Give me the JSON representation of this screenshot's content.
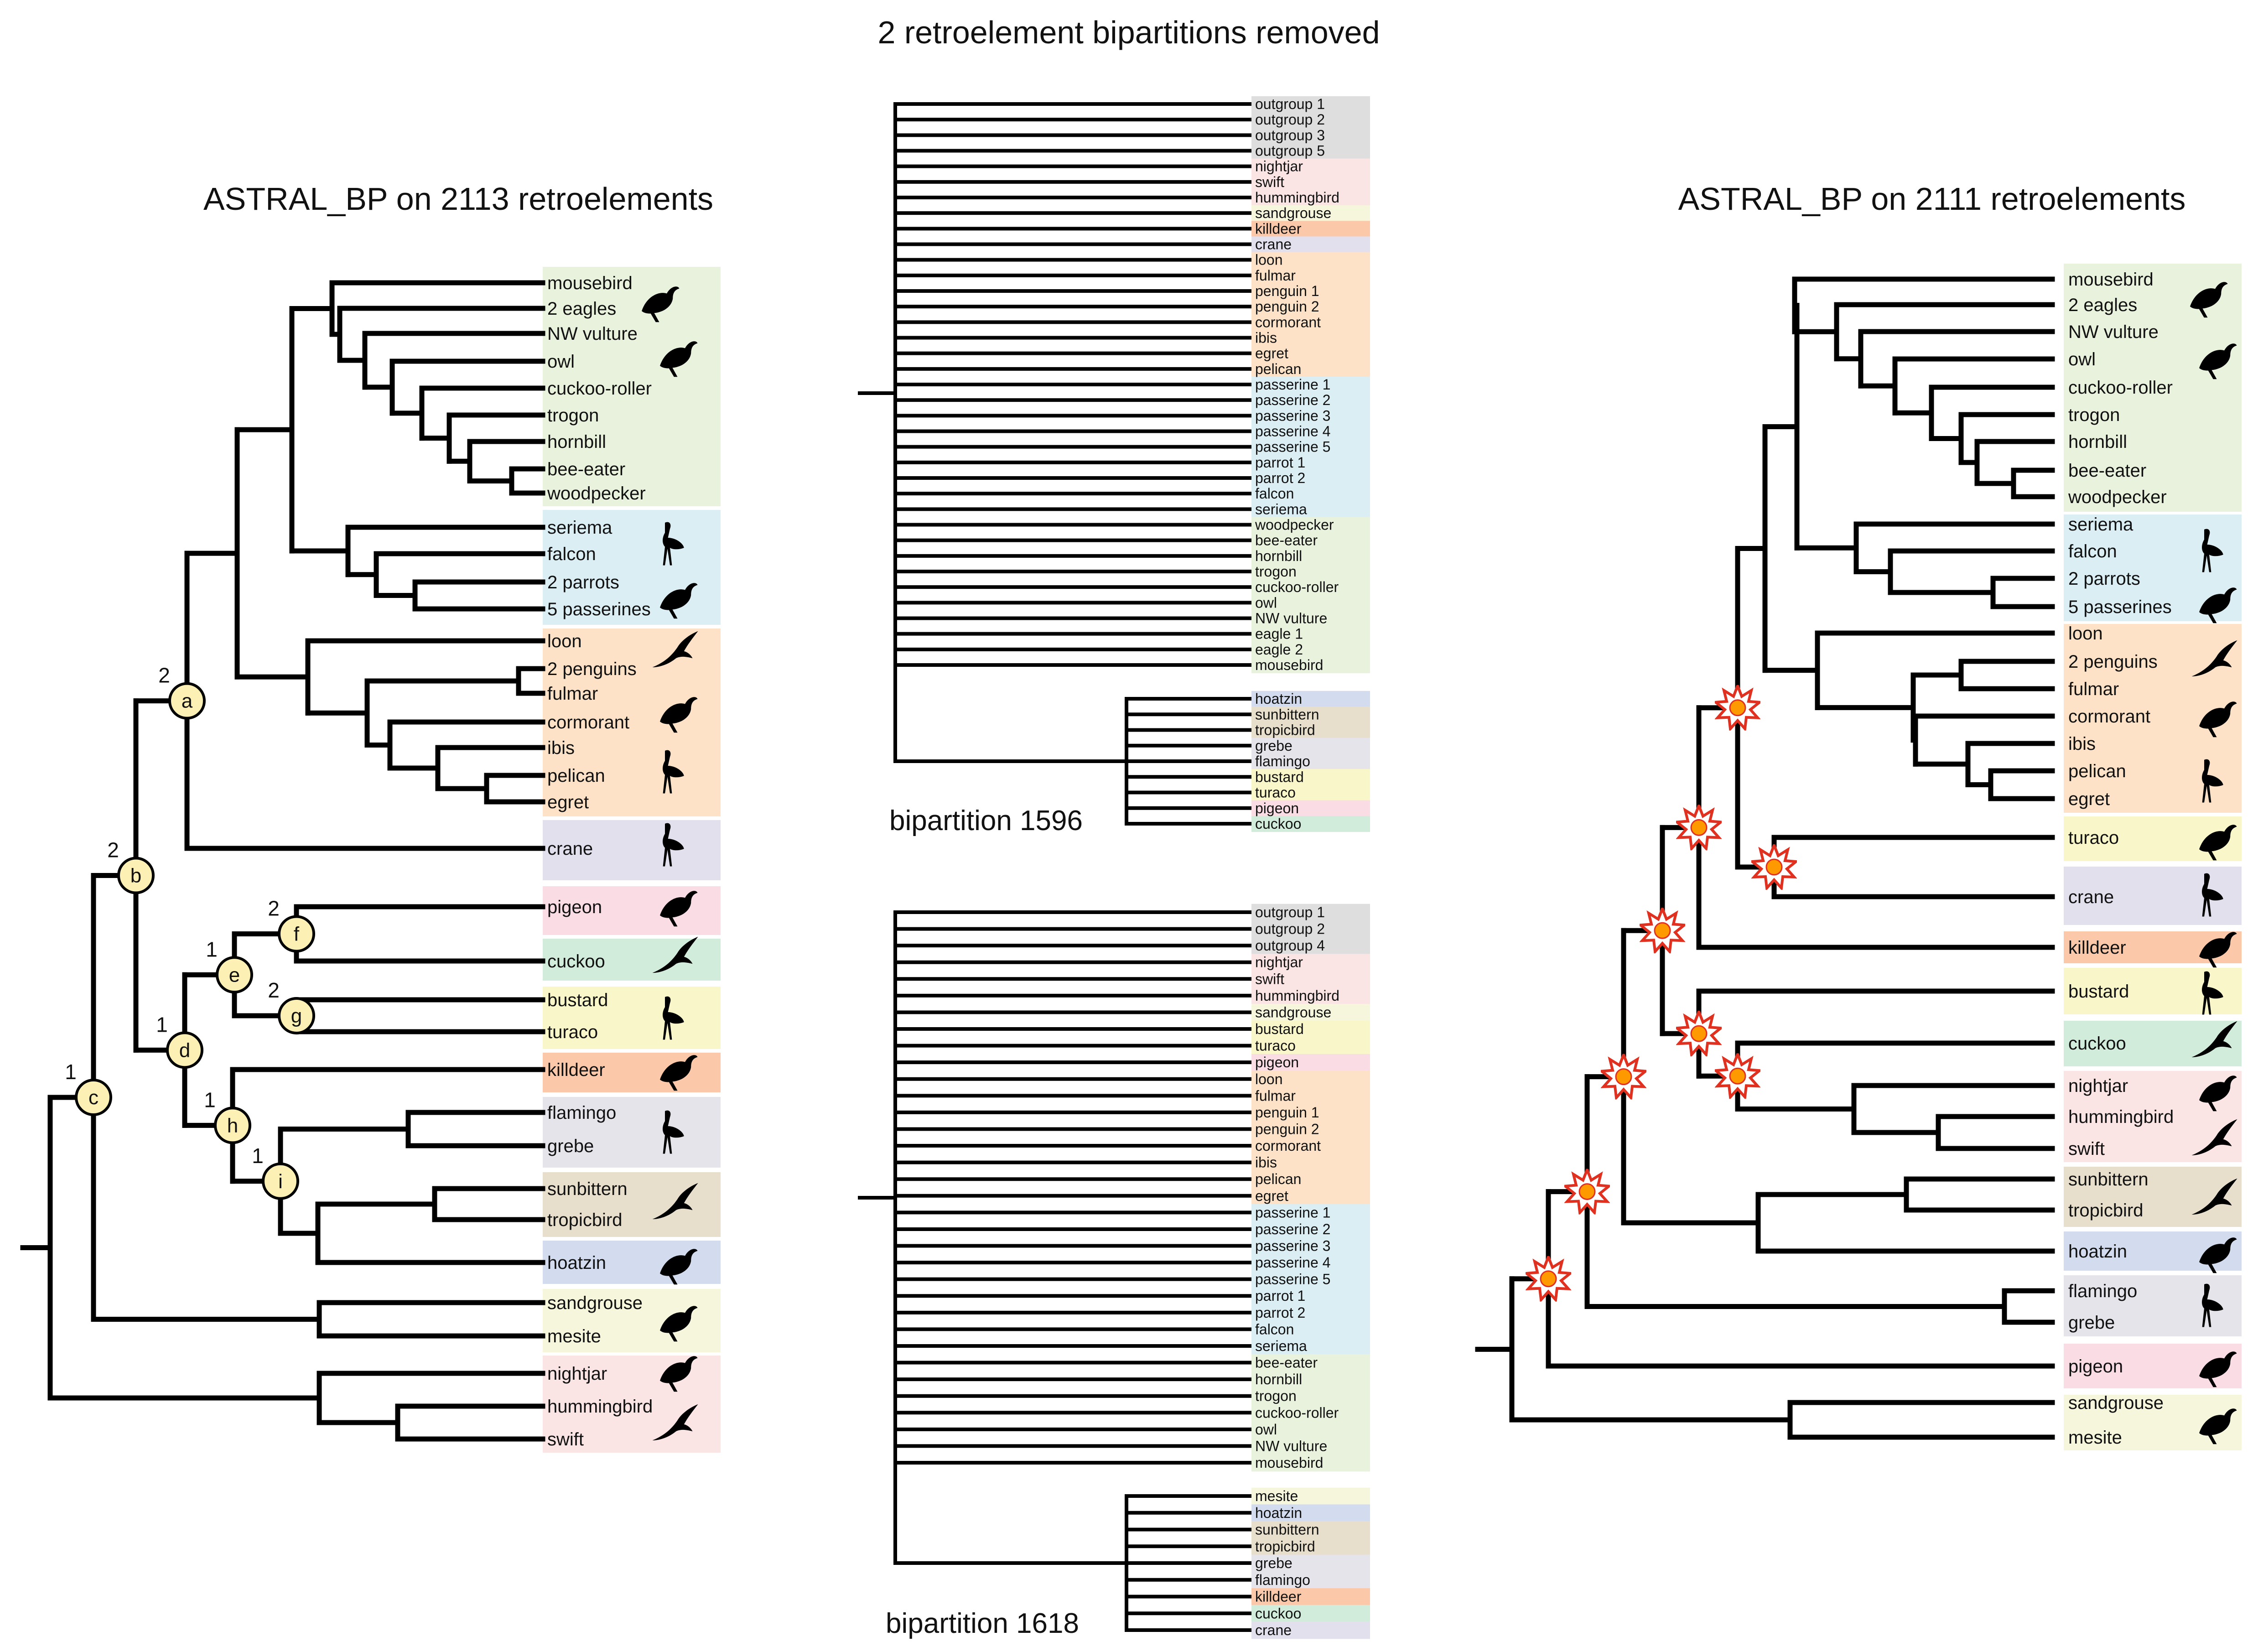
{
  "title": "2 retroelement bipartitions removed",
  "colors": {
    "green": "#e9f2dd",
    "blue": "#dbeef4",
    "orange": "#fde2c8",
    "purple": "#e3e0ee",
    "pink": "#fadce5",
    "mint": "#d2ecdb",
    "yellow": "#f9f6c9",
    "salmon": "#fbc9aa",
    "grey": "#e4e4ea",
    "tan": "#e7dfcc",
    "steel": "#d2dcee",
    "cream": "#f6f6dc",
    "rose": "#fbe4e4",
    "outgroup": "#dedede",
    "nodeFill": "#fdf0b4",
    "star": "#ff9900",
    "starEdge": "#e03020"
  },
  "left_tree": {
    "title": "ASTRAL_BP on 2113 retroelements",
    "leaves": [
      {
        "label": "mousebird",
        "color": "green"
      },
      {
        "label": "2 eagles",
        "color": "green"
      },
      {
        "label": "NW vulture",
        "color": "green"
      },
      {
        "label": "owl",
        "color": "green"
      },
      {
        "label": "cuckoo-roller",
        "color": "green"
      },
      {
        "label": "trogon",
        "color": "green"
      },
      {
        "label": "hornbill",
        "color": "green"
      },
      {
        "label": "bee-eater",
        "color": "green"
      },
      {
        "label": "woodpecker",
        "color": "green"
      },
      {
        "label": "seriema",
        "color": "blue"
      },
      {
        "label": "falcon",
        "color": "blue"
      },
      {
        "label": "2 parrots",
        "color": "blue"
      },
      {
        "label": "5 passerines",
        "color": "blue"
      },
      {
        "label": "loon",
        "color": "orange"
      },
      {
        "label": "2 penguins",
        "color": "orange"
      },
      {
        "label": "fulmar",
        "color": "orange"
      },
      {
        "label": "cormorant",
        "color": "orange"
      },
      {
        "label": "ibis",
        "color": "orange"
      },
      {
        "label": "pelican",
        "color": "orange"
      },
      {
        "label": "egret",
        "color": "orange"
      },
      {
        "label": "crane",
        "color": "purple"
      },
      {
        "label": "pigeon",
        "color": "pink"
      },
      {
        "label": "cuckoo",
        "color": "mint"
      },
      {
        "label": "bustard",
        "color": "yellow"
      },
      {
        "label": "turaco",
        "color": "yellow"
      },
      {
        "label": "killdeer",
        "color": "salmon"
      },
      {
        "label": "flamingo",
        "color": "grey"
      },
      {
        "label": "grebe",
        "color": "grey"
      },
      {
        "label": "sunbittern",
        "color": "tan"
      },
      {
        "label": "tropicbird",
        "color": "tan"
      },
      {
        "label": "hoatzin",
        "color": "steel"
      },
      {
        "label": "sandgrouse",
        "color": "cream"
      },
      {
        "label": "mesite",
        "color": "cream"
      },
      {
        "label": "nightjar",
        "color": "rose"
      },
      {
        "label": "hummingbird",
        "color": "rose"
      },
      {
        "label": "swift",
        "color": "rose"
      }
    ],
    "nodes": [
      {
        "name": "a",
        "support": "2"
      },
      {
        "name": "b",
        "support": "2"
      },
      {
        "name": "c",
        "support": "1"
      },
      {
        "name": "d",
        "support": "1"
      },
      {
        "name": "e",
        "support": "1"
      },
      {
        "name": "f",
        "support": "2"
      },
      {
        "name": "g",
        "support": "2"
      },
      {
        "name": "h",
        "support": "1"
      },
      {
        "name": "i",
        "support": "1"
      }
    ]
  },
  "right_tree": {
    "title": "ASTRAL_BP on 2111 retroelements",
    "leaves": [
      {
        "label": "mousebird",
        "color": "green"
      },
      {
        "label": "2 eagles",
        "color": "green"
      },
      {
        "label": "NW vulture",
        "color": "green"
      },
      {
        "label": "owl",
        "color": "green"
      },
      {
        "label": "cuckoo-roller",
        "color": "green"
      },
      {
        "label": "trogon",
        "color": "green"
      },
      {
        "label": "hornbill",
        "color": "green"
      },
      {
        "label": "bee-eater",
        "color": "green"
      },
      {
        "label": "woodpecker",
        "color": "green"
      },
      {
        "label": "seriema",
        "color": "blue"
      },
      {
        "label": "falcon",
        "color": "blue"
      },
      {
        "label": "2 parrots",
        "color": "blue"
      },
      {
        "label": "5 passerines",
        "color": "blue"
      },
      {
        "label": "loon",
        "color": "orange"
      },
      {
        "label": "2 penguins",
        "color": "orange"
      },
      {
        "label": "fulmar",
        "color": "orange"
      },
      {
        "label": "cormorant",
        "color": "orange"
      },
      {
        "label": "ibis",
        "color": "orange"
      },
      {
        "label": "pelican",
        "color": "orange"
      },
      {
        "label": "egret",
        "color": "orange"
      },
      {
        "label": "turaco",
        "color": "yellow"
      },
      {
        "label": "crane",
        "color": "purple"
      },
      {
        "label": "killdeer",
        "color": "salmon"
      },
      {
        "label": "bustard",
        "color": "yellow"
      },
      {
        "label": "cuckoo",
        "color": "mint"
      },
      {
        "label": "nightjar",
        "color": "rose"
      },
      {
        "label": "hummingbird",
        "color": "rose"
      },
      {
        "label": "swift",
        "color": "rose"
      },
      {
        "label": "sunbittern",
        "color": "tan"
      },
      {
        "label": "tropicbird",
        "color": "tan"
      },
      {
        "label": "hoatzin",
        "color": "steel"
      },
      {
        "label": "flamingo",
        "color": "grey"
      },
      {
        "label": "grebe",
        "color": "grey"
      },
      {
        "label": "pigeon",
        "color": "pink"
      },
      {
        "label": "sandgrouse",
        "color": "cream"
      },
      {
        "label": "mesite",
        "color": "cream"
      }
    ]
  },
  "bipartition_1596": {
    "label": "bipartition 1596",
    "side_a": [
      "outgroup 1",
      "outgroup 2",
      "outgroup 3",
      "outgroup 5",
      "nightjar",
      "swift",
      "hummingbird",
      "sandgrouse",
      "killdeer",
      "crane",
      "loon",
      "fulmar",
      "penguin 1",
      "penguin 2",
      "cormorant",
      "ibis",
      "egret",
      "pelican",
      "passerine 1",
      "passerine 2",
      "passerine 3",
      "passerine 4",
      "passerine 5",
      "parrot 1",
      "parrot 2",
      "falcon",
      "seriema",
      "woodpecker",
      "bee-eater",
      "hornbill",
      "trogon",
      "cuckoo-roller",
      "owl",
      "NW vulture",
      "eagle 1",
      "eagle 2",
      "mousebird"
    ],
    "side_a_colors": [
      "outgroup",
      "outgroup",
      "outgroup",
      "outgroup",
      "rose",
      "rose",
      "rose",
      "cream",
      "salmon",
      "purple",
      "orange",
      "orange",
      "orange",
      "orange",
      "orange",
      "orange",
      "orange",
      "orange",
      "blue",
      "blue",
      "blue",
      "blue",
      "blue",
      "blue",
      "blue",
      "blue",
      "blue",
      "green",
      "green",
      "green",
      "green",
      "green",
      "green",
      "green",
      "green",
      "green",
      "green"
    ],
    "side_b": [
      "hoatzin",
      "sunbittern",
      "tropicbird",
      "grebe",
      "flamingo",
      "bustard",
      "turaco",
      "pigeon",
      "cuckoo"
    ],
    "side_b_colors": [
      "steel",
      "tan",
      "tan",
      "grey",
      "grey",
      "yellow",
      "yellow",
      "pink",
      "mint"
    ]
  },
  "bipartition_1618": {
    "label": "bipartition  1618",
    "side_a": [
      "outgroup 1",
      "outgroup 2",
      "outgroup 4",
      "nightjar",
      "swift",
      "hummingbird",
      "sandgrouse",
      "bustard",
      "turaco",
      "pigeon",
      "loon",
      "fulmar",
      "penguin 1",
      "penguin 2",
      "cormorant",
      "ibis",
      "pelican",
      "egret",
      "passerine 1",
      "passerine 2",
      "passerine 3",
      "passerine 4",
      "passerine 5",
      "parrot 1",
      "parrot 2",
      "falcon",
      "seriema",
      "bee-eater",
      "hornbill",
      "trogon",
      "cuckoo-roller",
      "owl",
      "NW vulture",
      "mousebird"
    ],
    "side_a_colors": [
      "outgroup",
      "outgroup",
      "outgroup",
      "rose",
      "rose",
      "rose",
      "cream",
      "yellow",
      "yellow",
      "pink",
      "orange",
      "orange",
      "orange",
      "orange",
      "orange",
      "orange",
      "orange",
      "orange",
      "blue",
      "blue",
      "blue",
      "blue",
      "blue",
      "blue",
      "blue",
      "blue",
      "blue",
      "green",
      "green",
      "green",
      "green",
      "green",
      "green",
      "green"
    ],
    "side_b": [
      "mesite",
      "hoatzin",
      "sunbittern",
      "tropicbird",
      "grebe",
      "flamingo",
      "killdeer",
      "cuckoo",
      "crane"
    ],
    "side_b_colors": [
      "cream",
      "steel",
      "tan",
      "tan",
      "grey",
      "grey",
      "salmon",
      "mint",
      "purple"
    ]
  }
}
